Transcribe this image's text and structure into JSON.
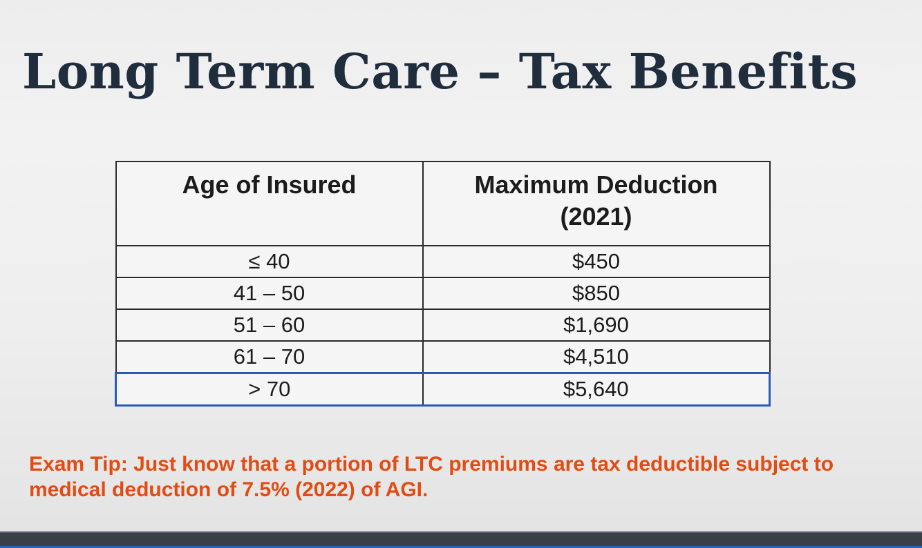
{
  "slide": {
    "title": "Long Term Care – Tax Benefits"
  },
  "table": {
    "headers": {
      "age": "Age of Insured",
      "deduction_line1": "Maximum Deduction",
      "deduction_line2": "(2021)"
    },
    "rows": [
      {
        "age": "≤ 40",
        "deduction": "$450"
      },
      {
        "age": "41 – 50",
        "deduction": "$850"
      },
      {
        "age": "51 – 60",
        "deduction": "$1,690"
      },
      {
        "age": "61 – 70",
        "deduction": "$4,510"
      },
      {
        "age": "> 70",
        "deduction": "$5,640"
      }
    ],
    "highlighted_row": 4,
    "highlight_color": "#2a5ab8"
  },
  "exam_tip": {
    "text": "Exam Tip:  Just know that a portion of LTC premiums are tax deductible subject to medical deduction of 7.5% (2022) of AGI.",
    "color": "#e24b12"
  }
}
